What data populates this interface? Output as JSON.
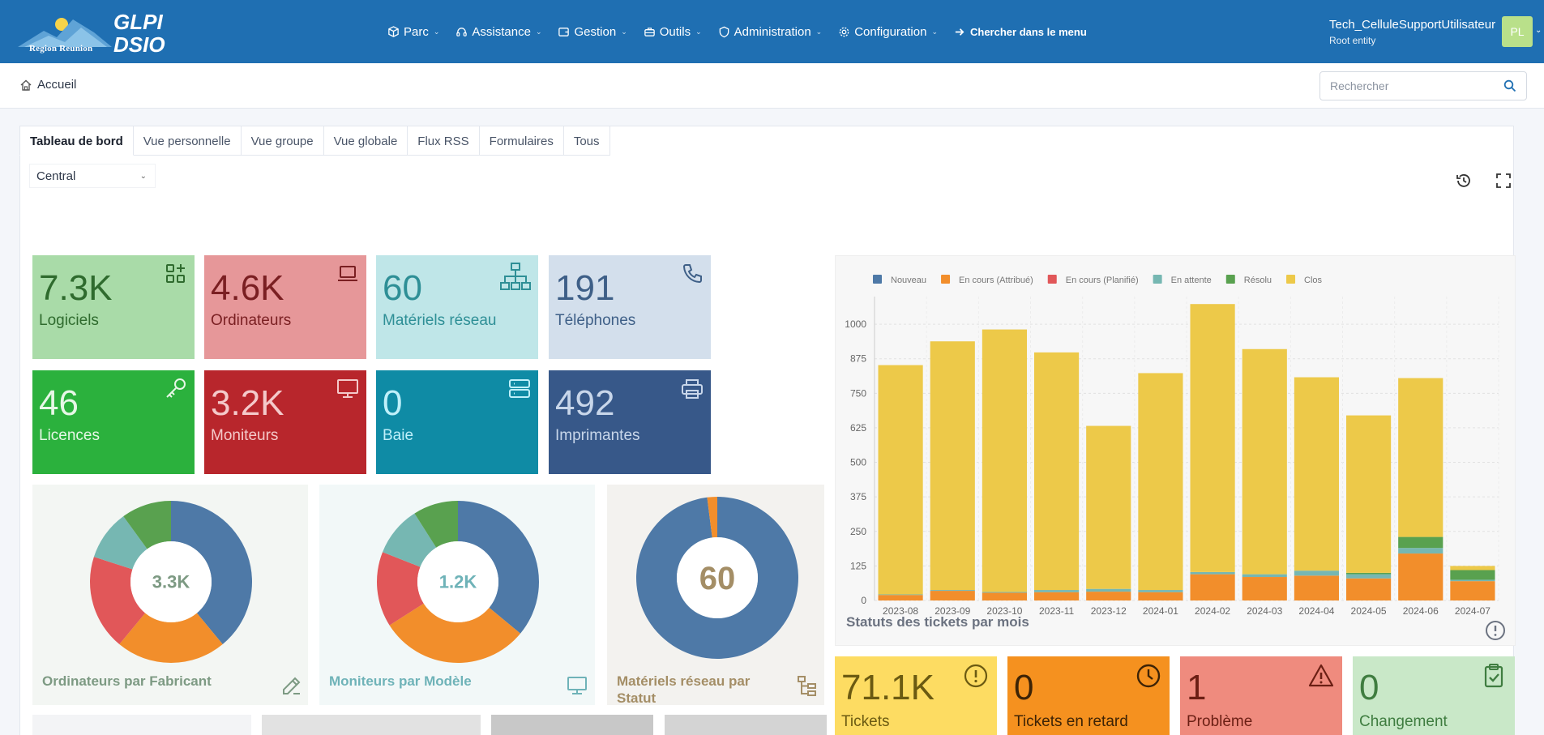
{
  "app": {
    "logo_region": "Region Reunion",
    "logo_glpi": "GLPI",
    "logo_dsio": "DSIO"
  },
  "menu": {
    "items": [
      {
        "label": "Parc",
        "icon": "box-icon"
      },
      {
        "label": "Assistance",
        "icon": "headset-icon"
      },
      {
        "label": "Gestion",
        "icon": "wallet-icon"
      },
      {
        "label": "Outils",
        "icon": "briefcase-icon"
      },
      {
        "label": "Administration",
        "icon": "shield-icon"
      },
      {
        "label": "Configuration",
        "icon": "gear-icon"
      }
    ],
    "search_label": "Chercher dans le menu"
  },
  "user": {
    "name": "Tech_CelluleSupportUtilisateur",
    "entity": "Root entity",
    "initials": "PL"
  },
  "breadcrumb": {
    "home": "Accueil"
  },
  "search": {
    "placeholder": "Rechercher"
  },
  "tabs": [
    "Tableau de bord",
    "Vue personnelle",
    "Vue groupe",
    "Vue globale",
    "Flux RSS",
    "Formulaires",
    "Tous"
  ],
  "dashboard": {
    "selected": "Central"
  },
  "cards": [
    {
      "value": "7.3K",
      "label": "Logiciels",
      "bg": "#a9dba8",
      "fg": "#2f6b2e",
      "icon": "apps-add-icon"
    },
    {
      "value": "4.6K",
      "label": "Ordinateurs",
      "bg": "#e69799",
      "fg": "#7a1f22",
      "icon": "laptop-icon"
    },
    {
      "value": "60",
      "label": "Matériels réseau",
      "bg": "#bfe6e8",
      "fg": "#2e8f96",
      "icon": "network-icon"
    },
    {
      "value": "191",
      "label": "Téléphones",
      "bg": "#d3dfec",
      "fg": "#3e5f87",
      "icon": "phone-icon"
    },
    {
      "value": "46",
      "label": "Licences",
      "bg": "#2bb13d",
      "fg": "#e6f7e6",
      "icon": "key-icon"
    },
    {
      "value": "3.2K",
      "label": "Moniteurs",
      "bg": "#b8262c",
      "fg": "#f4c9ca",
      "icon": "monitor-icon"
    },
    {
      "value": "0",
      "label": "Baie",
      "bg": "#0f8ba5",
      "fg": "#bff0fa",
      "icon": "server-icon"
    },
    {
      "value": "492",
      "label": "Imprimantes",
      "bg": "#375889",
      "fg": "#c8d6ea",
      "icon": "printer-icon"
    }
  ],
  "donuts": [
    {
      "title": "Ordinateurs par Fabricant",
      "center": "3.3K",
      "bg": "#f3f6f3",
      "fg": "#7d9a83",
      "slices": [
        {
          "value": 39,
          "color": "#4e79a7"
        },
        {
          "value": 22,
          "color": "#f28e2b"
        },
        {
          "value": 19,
          "color": "#e15759"
        },
        {
          "value": 10,
          "color": "#76b7b2"
        },
        {
          "value": 10,
          "color": "#59a14f"
        }
      ]
    },
    {
      "title": "Moniteurs par Modèle",
      "center": "1.2K",
      "bg": "#f2f8f8",
      "fg": "#6fb3b8",
      "slices": [
        {
          "value": 36,
          "color": "#4e79a7"
        },
        {
          "value": 30,
          "color": "#f28e2b"
        },
        {
          "value": 15,
          "color": "#e15759"
        },
        {
          "value": 10,
          "color": "#76b7b2"
        },
        {
          "value": 9,
          "color": "#59a14f"
        }
      ]
    },
    {
      "title": "Matériels réseau par Statut",
      "center": "60",
      "bg": "#f3f2ef",
      "fg": "#a48e66",
      "slices": [
        {
          "value": 98,
          "color": "#4e79a7"
        },
        {
          "value": 2,
          "color": "#f28e2b"
        }
      ]
    }
  ],
  "chart_data": {
    "type": "bar",
    "stacked": true,
    "title": "Statuts des tickets par mois",
    "categories": [
      "2023-08",
      "2023-09",
      "2023-10",
      "2023-11",
      "2023-12",
      "2024-01",
      "2024-02",
      "2024-03",
      "2024-04",
      "2024-05",
      "2024-06",
      "2024-07"
    ],
    "ylim": [
      0,
      1100
    ],
    "yticks": [
      0,
      125,
      250,
      375,
      500,
      625,
      750,
      875,
      1000
    ],
    "legend_position": "top-left",
    "grid": true,
    "series": [
      {
        "name": "Nouveau",
        "color": "#4e79a7",
        "values": [
          0,
          0,
          0,
          0,
          0,
          0,
          0,
          0,
          0,
          0,
          0,
          0
        ]
      },
      {
        "name": "En cours (Attribué)",
        "color": "#f28e2b",
        "values": [
          20,
          35,
          28,
          30,
          32,
          30,
          95,
          85,
          90,
          80,
          170,
          70
        ]
      },
      {
        "name": "En cours (Planifié)",
        "color": "#e15759",
        "values": [
          0,
          0,
          0,
          0,
          0,
          0,
          0,
          0,
          0,
          0,
          0,
          0
        ]
      },
      {
        "name": "En attente",
        "color": "#76b7b2",
        "values": [
          2,
          3,
          3,
          8,
          10,
          8,
          8,
          10,
          18,
          15,
          20,
          5
        ]
      },
      {
        "name": "Résolu",
        "color": "#59a14f",
        "values": [
          0,
          0,
          0,
          0,
          0,
          0,
          0,
          0,
          0,
          5,
          40,
          35
        ]
      },
      {
        "name": "Clos",
        "color": "#edc949",
        "values": [
          830,
          900,
          950,
          860,
          590,
          785,
          970,
          815,
          700,
          570,
          575,
          15
        ]
      }
    ]
  },
  "bottom_cards": [
    {
      "value": "71.1K",
      "label": "Tickets",
      "bg": "#fddc62",
      "fg": "#6b5a12",
      "icon": "alert-circle-icon"
    },
    {
      "value": "0",
      "label": "Tickets en retard",
      "bg": "#f5911f",
      "fg": "#3d2306",
      "icon": "clock-icon"
    },
    {
      "value": "1",
      "label": "Problème",
      "bg": "#ef8b7e",
      "fg": "#6b1f14",
      "icon": "warning-icon"
    },
    {
      "value": "0",
      "label": "Changement",
      "bg": "#c9e8c8",
      "fg": "#3f7d40",
      "icon": "clipboard-check-icon"
    }
  ]
}
